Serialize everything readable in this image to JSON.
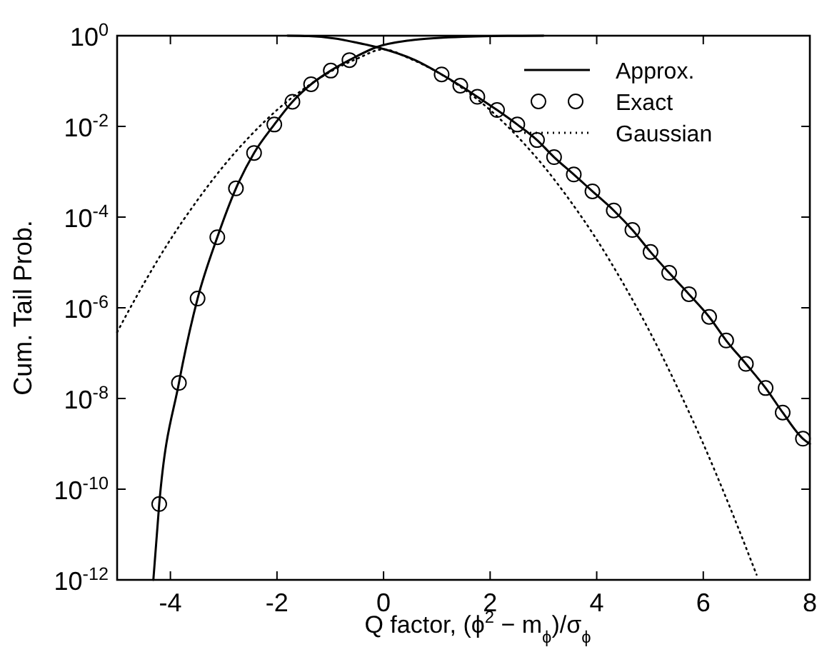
{
  "chart_data": {
    "type": "line",
    "xlabel": "Q  factor, (ϕ$^{2}$ − m$_{ϕ}$)/σ$_{ϕ}$",
    "ylabel": "Cum. Tail Prob.",
    "log": "y",
    "xlim": [
      -5,
      8
    ],
    "xticks": [
      -4,
      -2,
      0,
      2,
      4,
      6,
      8
    ],
    "ylim": [
      1e-12,
      1
    ],
    "yticks": [
      {
        "value": 1,
        "label": "10$^{0}$"
      },
      {
        "value": 0.01,
        "label": "10$^{-2}$"
      },
      {
        "value": 0.0001,
        "label": "10$^{-4}$"
      },
      {
        "value": 1e-06,
        "label": "10$^{-6}$"
      },
      {
        "value": 1e-08,
        "label": "10$^{-8}$"
      },
      {
        "value": 1e-10,
        "label": "10$^{-10}$"
      },
      {
        "value": 1e-12,
        "label": "10$^{-12}$"
      }
    ],
    "grid": false,
    "legend": "top right",
    "series": [
      {
        "name": "Approx.",
        "color": "#000000",
        "line_style": "solid",
        "x": [
          -4.32,
          -4.21,
          -3.84,
          -3.49,
          -3.12,
          -2.77,
          -2.43,
          -2.05,
          -1.71,
          -1.36,
          -0.99,
          -0.64,
          -0.13,
          0.5,
          1,
          1.5,
          2,
          2.5,
          3
        ],
        "values": [
          1e-12,
          4.7e-11,
          2.2e-08,
          1.6e-06,
          3.6e-05,
          0.00043,
          0.0026,
          0.011,
          0.035,
          0.085,
          0.17,
          0.29,
          0.56,
          0.79,
          0.89,
          0.95,
          0.98,
          0.99,
          1
        ]
      },
      {
        "color": "#000000",
        "line_style": "solid",
        "x": [
          -1.8,
          -1.4,
          -0.93,
          -0.5,
          -0.13,
          0.59,
          1.09,
          1.44,
          1.76,
          2.13,
          2.51,
          2.88,
          3.2,
          3.57,
          3.92,
          4.32,
          4.67,
          5.01,
          5.36,
          5.73,
          6.11,
          6.43,
          6.8,
          7.17,
          7.49,
          7.87,
          8
        ],
        "values": [
          1,
          0.98,
          0.87,
          0.7,
          0.56,
          0.29,
          0.14,
          0.079,
          0.045,
          0.023,
          0.011,
          0.005,
          0.0021,
          0.00087,
          0.00037,
          0.00014,
          5.2e-05,
          1.7e-05,
          5.9e-06,
          2e-06,
          6.3e-07,
          1.9e-07,
          5.8e-08,
          1.7e-08,
          4.9e-09,
          1.3e-09,
          1e-09
        ]
      },
      {
        "name": "Exact",
        "type": "scatter",
        "color": "#000000",
        "marker": "circle",
        "x": [
          -4.21,
          -3.84,
          -3.49,
          -3.12,
          -2.77,
          -2.43,
          -2.05,
          -1.71,
          -1.36,
          -0.99,
          -0.64,
          1.09,
          1.44,
          1.76,
          2.13,
          2.51,
          2.88,
          3.2,
          3.57,
          3.92,
          4.32,
          4.67,
          5.01,
          5.36,
          5.73,
          6.11,
          6.43,
          6.8,
          7.17,
          7.49,
          7.87
        ],
        "values": [
          4.7e-11,
          2.2e-08,
          1.6e-06,
          3.6e-05,
          0.00043,
          0.0026,
          0.011,
          0.035,
          0.085,
          0.17,
          0.29,
          0.14,
          0.079,
          0.045,
          0.023,
          0.011,
          0.005,
          0.0021,
          0.00087,
          0.00037,
          0.00014,
          5.2e-05,
          1.7e-05,
          5.9e-06,
          2e-06,
          6.3e-07,
          1.9e-07,
          5.8e-08,
          1.7e-08,
          4.9e-09,
          1.3e-09
        ]
      },
      {
        "name": "Gaussian",
        "color": "#000000",
        "line_style": "dotted",
        "x": [
          -5,
          -4.5,
          -4,
          -3.5,
          -3,
          -2.5,
          -2,
          -1.5,
          -1,
          -0.5,
          0,
          0.5,
          1,
          1.5,
          2,
          2.5,
          3,
          3.5,
          4,
          4.5,
          5,
          5.5,
          6,
          6.5,
          7
        ],
        "values": [
          2.9e-07,
          3.4e-06,
          3.2e-05,
          0.00023,
          0.00135,
          0.0062,
          0.023,
          0.067,
          0.16,
          0.31,
          0.5,
          0.31,
          0.16,
          0.067,
          0.023,
          0.0062,
          0.00135,
          0.00023,
          3.2e-05,
          3.4e-06,
          2.9e-07,
          1.9e-08,
          1e-09,
          4e-11,
          1.3e-12
        ]
      }
    ]
  }
}
